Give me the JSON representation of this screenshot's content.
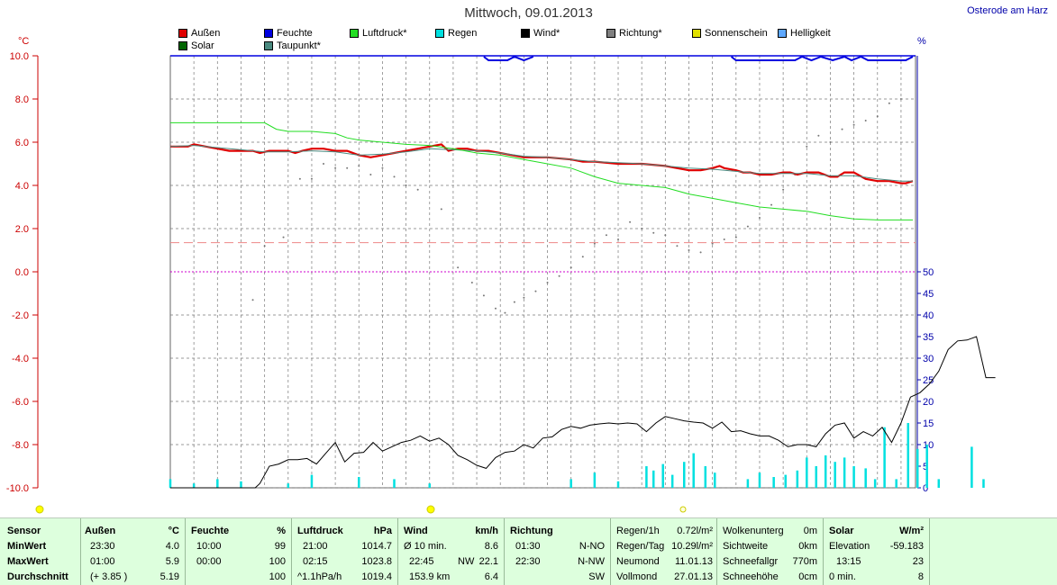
{
  "title": "Mittwoch, 09.01.2013",
  "station": "Osterode am Harz",
  "units": {
    "left": "°C",
    "right": "%"
  },
  "legend": [
    {
      "label": "Außen",
      "color": "#e00000"
    },
    {
      "label": "Feuchte",
      "color": "#0000e0"
    },
    {
      "label": "Luftdruck*",
      "color": "#22dd22"
    },
    {
      "label": "Regen",
      "color": "#00e0e0"
    },
    {
      "label": "Wind*",
      "color": "#000000"
    },
    {
      "label": "Richtung*",
      "color": "#808080"
    },
    {
      "label": "Sonnenschein",
      "color": "#e0e000"
    },
    {
      "label": "Helligkeit",
      "color": "#5ea8ff"
    },
    {
      "label": "Solar",
      "color": "#006400"
    },
    {
      "label": "Taupunkt*",
      "color": "#4a8a80"
    }
  ],
  "chart_data": {
    "type": "line",
    "x_hours": [
      0,
      24
    ],
    "ylim_left": [
      -10,
      10
    ],
    "ylim_right": [
      0,
      50
    ],
    "left_ticks": [
      "10.0",
      "8.0",
      "6.0",
      "4.0",
      "2.0",
      "0.0",
      "-2.0",
      "-4.0",
      "-6.0",
      "-8.0",
      "-10.0"
    ],
    "right_ticks": [
      "50",
      "45",
      "40",
      "35",
      "30",
      "25",
      "20",
      "15",
      "10",
      "5",
      "0"
    ],
    "grid": true,
    "reference_line_left": 1.35,
    "series": [
      {
        "name": "Außen",
        "color": "#e00000",
        "points": [
          [
            0,
            5.8
          ],
          [
            0.75,
            5.8
          ],
          [
            1,
            5.9
          ],
          [
            1.5,
            5.8
          ],
          [
            2,
            5.7
          ],
          [
            2.5,
            5.6
          ],
          [
            3,
            5.6
          ],
          [
            3.5,
            5.6
          ],
          [
            3.8,
            5.5
          ],
          [
            4.2,
            5.6
          ],
          [
            4.6,
            5.6
          ],
          [
            5,
            5.6
          ],
          [
            5.3,
            5.5
          ],
          [
            5.6,
            5.6
          ],
          [
            6,
            5.7
          ],
          [
            6.5,
            5.7
          ],
          [
            7,
            5.6
          ],
          [
            7.5,
            5.6
          ],
          [
            8,
            5.4
          ],
          [
            8.5,
            5.3
          ],
          [
            9,
            5.4
          ],
          [
            9.5,
            5.5
          ],
          [
            10,
            5.6
          ],
          [
            10.5,
            5.7
          ],
          [
            11,
            5.8
          ],
          [
            11.5,
            5.9
          ],
          [
            11.8,
            5.6
          ],
          [
            12.2,
            5.7
          ],
          [
            12.6,
            5.7
          ],
          [
            13,
            5.6
          ],
          [
            13.5,
            5.6
          ],
          [
            14,
            5.5
          ],
          [
            14.5,
            5.4
          ],
          [
            15,
            5.3
          ],
          [
            16,
            5.3
          ],
          [
            17,
            5.2
          ],
          [
            17.5,
            5.1
          ],
          [
            18,
            5.1
          ],
          [
            19,
            5.0
          ],
          [
            20,
            5.0
          ],
          [
            21,
            4.9
          ],
          [
            21.5,
            4.8
          ],
          [
            22,
            4.7
          ],
          [
            22.5,
            4.7
          ],
          [
            23,
            4.8
          ],
          [
            23.3,
            4.9
          ],
          [
            23.5,
            4.8
          ],
          [
            24,
            4.7
          ],
          [
            24.3,
            4.6
          ],
          [
            24.6,
            4.6
          ],
          [
            25,
            4.5
          ],
          [
            25.5,
            4.5
          ],
          [
            26,
            4.6
          ],
          [
            26.3,
            4.6
          ],
          [
            26.6,
            4.5
          ],
          [
            27,
            4.6
          ],
          [
            27.5,
            4.6
          ],
          [
            28,
            4.4
          ],
          [
            28.3,
            4.4
          ],
          [
            28.6,
            4.6
          ],
          [
            29,
            4.6
          ],
          [
            29.5,
            4.3
          ],
          [
            30,
            4.2
          ],
          [
            30.5,
            4.2
          ],
          [
            31,
            4.1
          ],
          [
            31.2,
            4.1
          ],
          [
            31.5,
            4.2
          ]
        ]
      },
      {
        "name": "Taupunkt*",
        "color": "#4a8a80",
        "points": [
          [
            0,
            5.8
          ],
          [
            1,
            5.85
          ],
          [
            2,
            5.75
          ],
          [
            3,
            5.65
          ],
          [
            4,
            5.55
          ],
          [
            5,
            5.55
          ],
          [
            6,
            5.6
          ],
          [
            7,
            5.55
          ],
          [
            8,
            5.4
          ],
          [
            9,
            5.45
          ],
          [
            10,
            5.55
          ],
          [
            11,
            5.7
          ],
          [
            12,
            5.65
          ],
          [
            13,
            5.6
          ],
          [
            14,
            5.5
          ],
          [
            15,
            5.35
          ],
          [
            16,
            5.3
          ],
          [
            17,
            5.2
          ],
          [
            18,
            5.1
          ],
          [
            19,
            5.05
          ],
          [
            20,
            5.0
          ],
          [
            21,
            4.9
          ],
          [
            22,
            4.8
          ],
          [
            23,
            4.75
          ],
          [
            24,
            4.65
          ],
          [
            25,
            4.55
          ],
          [
            26,
            4.55
          ],
          [
            27,
            4.55
          ],
          [
            28,
            4.45
          ],
          [
            29,
            4.45
          ],
          [
            30,
            4.3
          ],
          [
            31,
            4.2
          ],
          [
            31.5,
            4.2
          ]
        ]
      },
      {
        "name": "Luftdruck*",
        "color": "#22dd22",
        "points": [
          [
            0,
            6.9
          ],
          [
            4,
            6.9
          ],
          [
            4.5,
            6.6
          ],
          [
            5,
            6.5
          ],
          [
            6,
            6.5
          ],
          [
            7,
            6.4
          ],
          [
            7.5,
            6.2
          ],
          [
            8,
            6.1
          ],
          [
            9,
            6.0
          ],
          [
            10,
            5.9
          ],
          [
            11,
            5.85
          ],
          [
            12,
            5.7
          ],
          [
            13,
            5.5
          ],
          [
            14,
            5.4
          ],
          [
            15,
            5.2
          ],
          [
            16,
            5.0
          ],
          [
            17,
            4.8
          ],
          [
            18,
            4.4
          ],
          [
            19,
            4.1
          ],
          [
            20,
            4.0
          ],
          [
            21,
            3.9
          ],
          [
            22,
            3.6
          ],
          [
            23,
            3.4
          ],
          [
            24,
            3.2
          ],
          [
            25,
            3.0
          ],
          [
            26,
            2.9
          ],
          [
            27,
            2.8
          ],
          [
            28,
            2.6
          ],
          [
            29,
            2.45
          ],
          [
            30,
            2.4
          ],
          [
            31.5,
            2.4
          ]
        ]
      },
      {
        "name": "Wind*",
        "color": "#000000",
        "axis": "right",
        "points": [
          [
            0,
            0
          ],
          [
            3.6,
            0
          ],
          [
            3.8,
            1
          ],
          [
            4.2,
            5
          ],
          [
            4.6,
            5.5
          ],
          [
            5,
            6.5
          ],
          [
            5.4,
            6.5
          ],
          [
            5.8,
            6.8
          ],
          [
            6.2,
            5.5
          ],
          [
            6.6,
            8
          ],
          [
            7,
            10.5
          ],
          [
            7.4,
            6
          ],
          [
            7.8,
            8
          ],
          [
            8.2,
            8.2
          ],
          [
            8.6,
            10.5
          ],
          [
            9,
            8.5
          ],
          [
            9.4,
            9.5
          ],
          [
            9.8,
            10.5
          ],
          [
            10.2,
            11
          ],
          [
            10.6,
            12
          ],
          [
            11,
            10.8
          ],
          [
            11.4,
            11.5
          ],
          [
            11.8,
            10
          ],
          [
            12.2,
            7.5
          ],
          [
            12.6,
            6.5
          ],
          [
            13,
            5.2
          ],
          [
            13.4,
            4.5
          ],
          [
            13.8,
            7
          ],
          [
            14.2,
            8.2
          ],
          [
            14.6,
            8.5
          ],
          [
            15,
            10
          ],
          [
            15.4,
            9.2
          ],
          [
            15.8,
            11.5
          ],
          [
            16.2,
            11.8
          ],
          [
            16.6,
            13.5
          ],
          [
            17,
            14.2
          ],
          [
            17.4,
            13.8
          ],
          [
            17.8,
            14.5
          ],
          [
            18.2,
            14.8
          ],
          [
            18.6,
            15
          ],
          [
            19,
            14.8
          ],
          [
            19.4,
            15
          ],
          [
            19.8,
            14.8
          ],
          [
            20.2,
            13
          ],
          [
            20.6,
            15
          ],
          [
            21,
            16.5
          ],
          [
            21.4,
            16
          ],
          [
            21.8,
            15.5
          ],
          [
            22.2,
            15.2
          ],
          [
            22.6,
            15
          ],
          [
            23,
            13.8
          ],
          [
            23.4,
            15.2
          ],
          [
            23.8,
            13
          ],
          [
            24.2,
            13.2
          ],
          [
            24.6,
            12.5
          ],
          [
            25,
            12
          ],
          [
            25.4,
            12
          ],
          [
            25.8,
            11
          ],
          [
            26.2,
            9.5
          ],
          [
            26.6,
            10
          ],
          [
            27,
            10
          ],
          [
            27.4,
            9.5
          ],
          [
            27.8,
            12.5
          ],
          [
            28.2,
            14.5
          ],
          [
            28.6,
            15
          ],
          [
            29,
            11.5
          ],
          [
            29.4,
            13
          ],
          [
            29.8,
            12
          ],
          [
            30.2,
            14
          ],
          [
            30.6,
            10.5
          ],
          [
            31,
            15
          ],
          [
            31.4,
            21
          ],
          [
            31.8,
            22
          ],
          [
            32.2,
            24
          ],
          [
            32.6,
            27
          ],
          [
            33,
            32
          ],
          [
            33.4,
            34
          ],
          [
            33.8,
            34.2
          ],
          [
            34.2,
            35
          ],
          [
            34.6,
            25.5
          ],
          [
            35,
            25.5
          ]
        ]
      }
    ],
    "rain_bars": [
      [
        0,
        2
      ],
      [
        1,
        1
      ],
      [
        2,
        2
      ],
      [
        3,
        1.5
      ],
      [
        5,
        1
      ],
      [
        6,
        3
      ],
      [
        8,
        2.5
      ],
      [
        9.5,
        2
      ],
      [
        11,
        1
      ],
      [
        17,
        2
      ],
      [
        18,
        3.5
      ],
      [
        19,
        1.5
      ],
      [
        20.2,
        5
      ],
      [
        20.5,
        4
      ],
      [
        20.9,
        5.5
      ],
      [
        21.3,
        3
      ],
      [
        21.8,
        6
      ],
      [
        22.2,
        8
      ],
      [
        22.7,
        5
      ],
      [
        23.1,
        3.5
      ],
      [
        24.5,
        2
      ],
      [
        25,
        3.5
      ],
      [
        25.6,
        2.5
      ],
      [
        26.1,
        3
      ],
      [
        26.6,
        4
      ],
      [
        27,
        7
      ],
      [
        27.4,
        5
      ],
      [
        27.8,
        7.5
      ],
      [
        28.2,
        6
      ],
      [
        28.6,
        7
      ],
      [
        29,
        5
      ],
      [
        29.5,
        4.5
      ],
      [
        29.9,
        2
      ],
      [
        30.3,
        14
      ],
      [
        30.8,
        2
      ],
      [
        31.3,
        15
      ],
      [
        31.7,
        9
      ],
      [
        32.1,
        10
      ],
      [
        32.6,
        2
      ],
      [
        34,
        9.5
      ],
      [
        34.5,
        2
      ]
    ]
  },
  "stats": {
    "headers": {
      "sensor": "Sensor",
      "aussen": "Außen",
      "aussen_unit": "°C",
      "feuchte": "Feuchte",
      "feuchte_unit": "%",
      "luftdruck": "Luftdruck",
      "luftdruck_unit": "hPa",
      "wind": "Wind",
      "wind_unit": "km/h",
      "richtung": "Richtung"
    },
    "labels": {
      "min": "MinWert",
      "max": "MaxWert",
      "avg": "Durchschnitt"
    },
    "aussen": {
      "min_time": "23:30",
      "min_val": "4.0",
      "max_time": "01:00",
      "max_val": "5.9",
      "avg_note": "(+ 3.85 )",
      "avg_val": "5.19"
    },
    "feuchte": {
      "min_time": "10:00",
      "min_val": "99",
      "max_time": "00:00",
      "max_val": "100",
      "avg_val": "100"
    },
    "luftdruck": {
      "min_time": "21:00",
      "min_val": "1014.7",
      "max_time": "02:15",
      "max_val": "1023.8",
      "avg_note": "^1.1hPa/h",
      "avg_val": "1019.4"
    },
    "wind": {
      "min_label": "Ø 10 min.",
      "min_val": "8.6",
      "max_time": "22:45",
      "max_dir": "NW",
      "max_val": "22.1",
      "avg_label": "153.9 km",
      "avg_val": "6.4"
    },
    "richtung": {
      "min_time": "01:30",
      "min_val": "N-NO",
      "max_time": "22:30",
      "max_val": "N-NW",
      "avg_val": "SW"
    },
    "regen": {
      "l1": "Regen/1h",
      "v1": "0.72l/m²",
      "l2": "Regen/Tag",
      "v2": "10.29l/m²",
      "l3": "Neumond",
      "v3": "11.01.13",
      "l4": "Vollmond",
      "v4": "27.01.13"
    },
    "wolken": {
      "l1": "Wolkenunterg",
      "v1": "0m",
      "l2": "Sichtweite",
      "v2": "0km",
      "l3": "Schneefallgr",
      "v3": "770m",
      "l4": "Schneehöhe",
      "v4": "0cm"
    },
    "solar": {
      "l1": "Solar",
      "u1": "W/m²",
      "l2": "Elevation",
      "v2": "-59.183",
      "l3": "13:15",
      "v3": "23",
      "l4": "0 min.",
      "v4": "8"
    }
  }
}
